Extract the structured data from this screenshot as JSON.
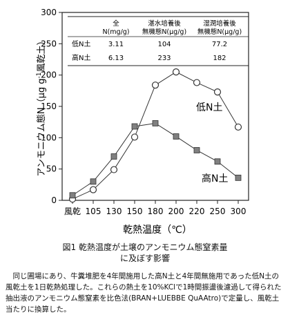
{
  "chart_data": {
    "type": "line",
    "ylabel": "アンモニウム態N（μg g-1風乾土）",
    "ylabel_parts": {
      "pre": "アンモニウム態N（μg g",
      "sup": "-1",
      "post": "風乾土）"
    },
    "xlabel": "乾熱温度（℃）",
    "categories": [
      "風乾",
      "105",
      "130",
      "150",
      "180",
      "200",
      "220",
      "250",
      "300"
    ],
    "yticks": [
      "0",
      "50",
      "100",
      "150",
      "200",
      "250",
      "300"
    ],
    "ylim": [
      0,
      300
    ],
    "series": [
      {
        "name": "低N土",
        "marker": "open-circle",
        "color": "#333333",
        "values": [
          2,
          17,
          49,
          101,
          184,
          205,
          188,
          173,
          117
        ]
      },
      {
        "name": "高N土",
        "marker": "gray-square",
        "color": "#808080",
        "values": [
          8,
          30,
          70,
          118,
          123,
          102,
          80,
          62,
          36
        ]
      }
    ],
    "inset_table": {
      "headers": [
        {
          "line1": "全",
          "line2": "N(mg/g)"
        },
        {
          "line1": "湛水培養後",
          "line2": "無機態N(μg/g)"
        },
        {
          "line1": "湿潤培養後",
          "line2": "無機態N(μg/g)"
        }
      ],
      "rows": [
        {
          "label": "低N土",
          "cells": [
            "3.11",
            "104",
            "77.2"
          ]
        },
        {
          "label": "高N土",
          "cells": [
            "6.13",
            "233",
            "182"
          ]
        }
      ]
    }
  },
  "caption": {
    "title_line1": "図1  乾熱温度が土壌のアンモニウム態窒素量",
    "title_line2": "に及ぼす影響",
    "body": "同じ圃場にあり、牛糞堆肥を4年間施用した高N土と4年間無施用であった低N土の風乾土を1日乾熱処理した。これらの熱土を10%KClで1時間振盪後濾過して得られた抽出液のアンモニウム態窒素を比色法(BRAN+LUEBBE QuAAtro)で定量し、風乾土当たりに換算した。"
  }
}
